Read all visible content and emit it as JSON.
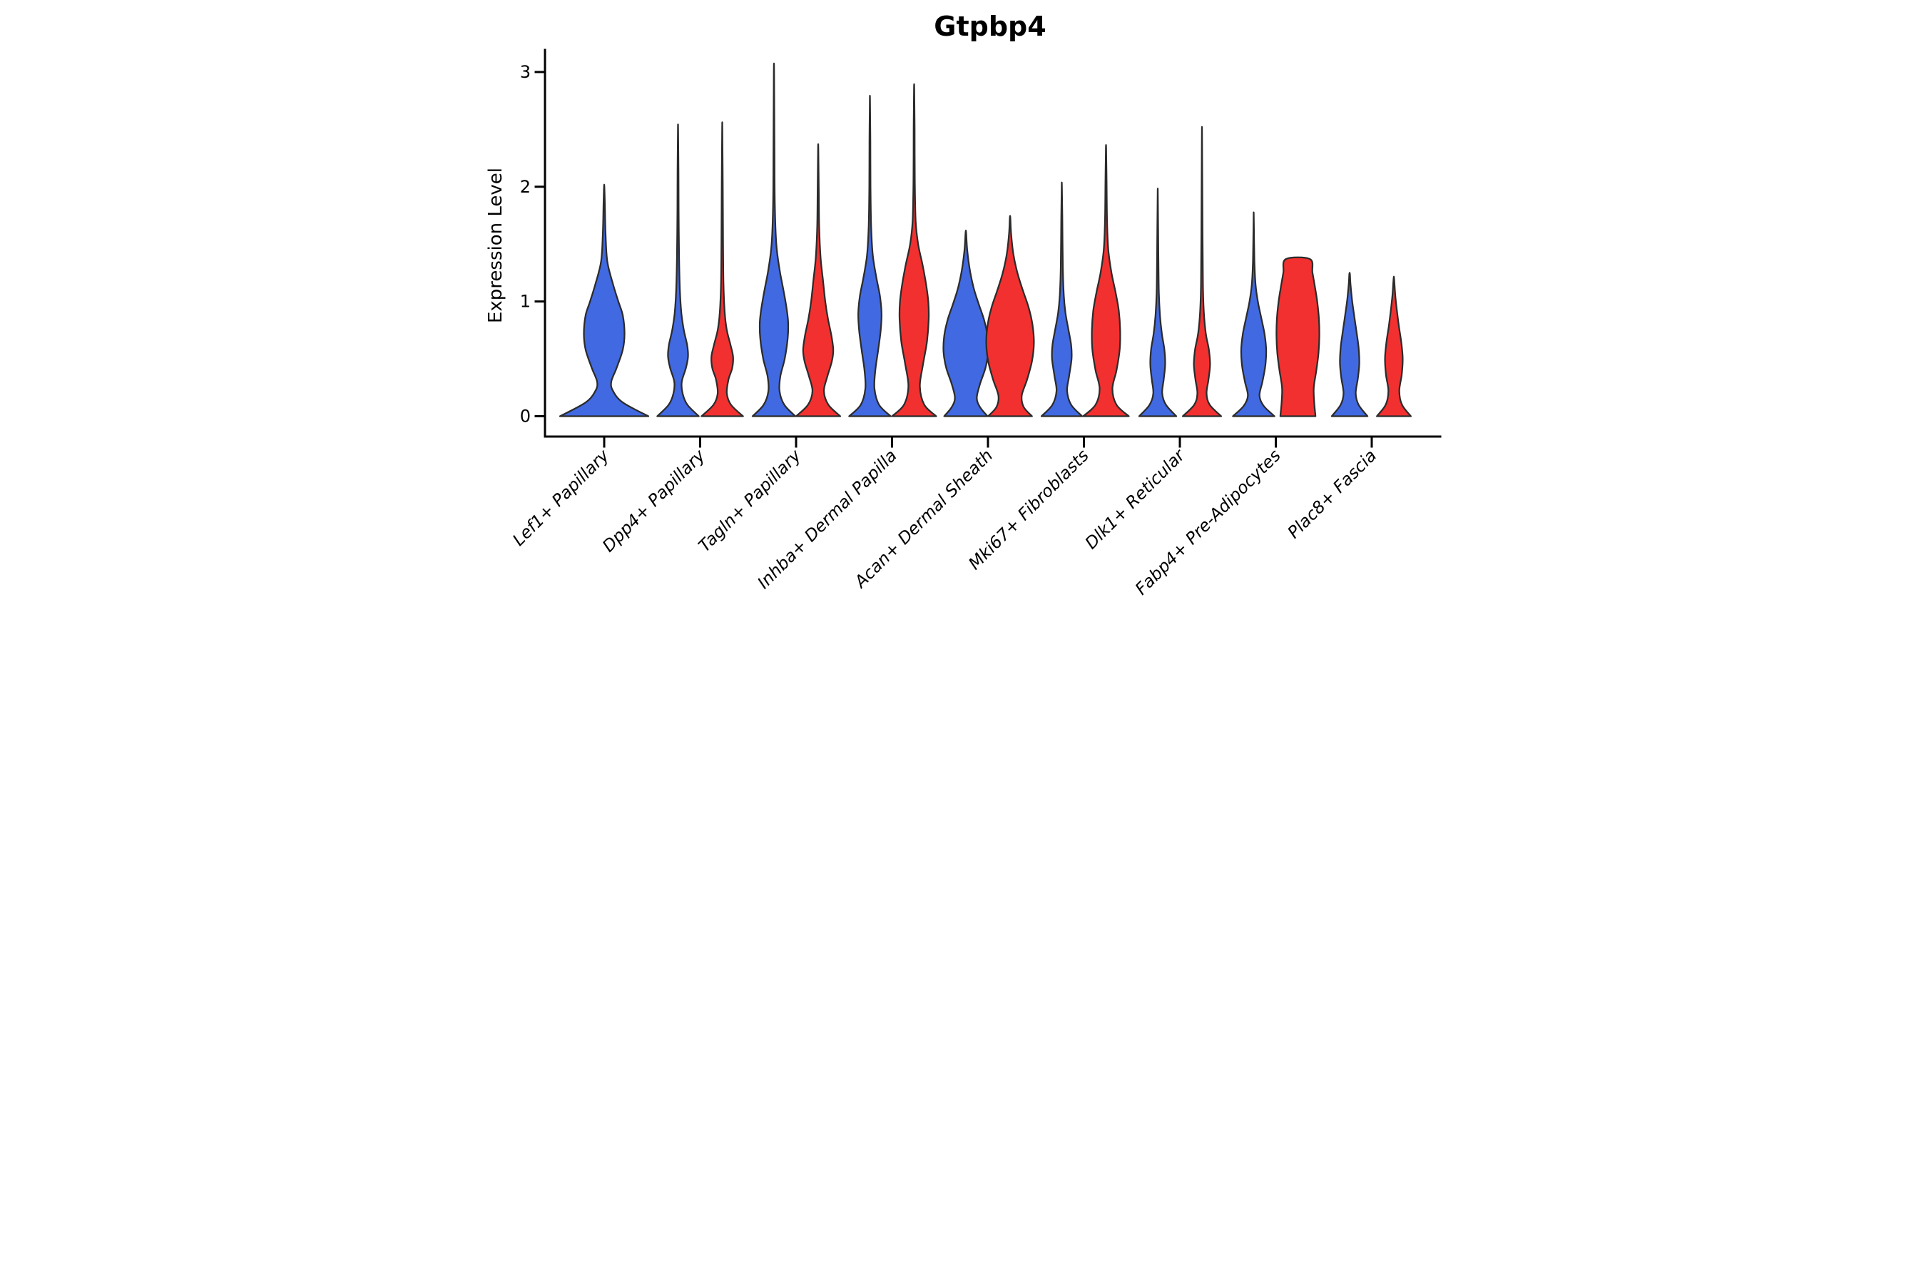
{
  "chart_data": {
    "type": "violin",
    "title": "Gtpbp4",
    "ylabel": "Expression Level",
    "xlabel": "",
    "ylim": [
      0,
      3.05
    ],
    "y_ticks": [
      0,
      1,
      2,
      3
    ],
    "grid": "off",
    "legend": "none",
    "colors": {
      "blue": "#4169E1",
      "red": "#F23030",
      "outline": "#2B2B2B"
    },
    "categories": [
      "Lef1+ Papillary",
      "Dpp4+ Papillary",
      "Tagln+ Papillary",
      "Inhba+ Dermal Papilla",
      "Acan+ Dermal Sheath",
      "Mki67+ Fibroblasts",
      "Dlk1+ Reticular",
      "Fabp4+ Pre-Adipocytes",
      "Plac8+ Fascia"
    ],
    "violins": [
      {
        "category": 0,
        "group": "blue",
        "side": "center",
        "max_expression": 2.0,
        "width_scale": 2.0,
        "flat_top": false,
        "profile": [
          [
            0,
            1.0
          ],
          [
            0.12,
            0.42
          ],
          [
            0.22,
            0.2
          ],
          [
            0.3,
            0.16
          ],
          [
            0.42,
            0.28
          ],
          [
            0.58,
            0.42
          ],
          [
            0.72,
            0.46
          ],
          [
            0.88,
            0.42
          ],
          [
            1.0,
            0.32
          ],
          [
            1.15,
            0.2
          ],
          [
            1.35,
            0.07
          ],
          [
            1.6,
            0.03
          ],
          [
            1.85,
            0.015
          ],
          [
            2.0,
            0.004
          ]
        ]
      },
      {
        "category": 1,
        "group": "blue",
        "side": "left",
        "max_expression": 2.5,
        "width_scale": 0.94,
        "flat_top": false,
        "profile": [
          [
            0,
            1.0
          ],
          [
            0.1,
            0.45
          ],
          [
            0.2,
            0.22
          ],
          [
            0.3,
            0.18
          ],
          [
            0.42,
            0.38
          ],
          [
            0.52,
            0.48
          ],
          [
            0.62,
            0.44
          ],
          [
            0.75,
            0.28
          ],
          [
            0.9,
            0.16
          ],
          [
            1.1,
            0.09
          ],
          [
            1.4,
            0.05
          ],
          [
            1.8,
            0.03
          ],
          [
            2.15,
            0.022
          ],
          [
            2.5,
            0.006
          ]
        ]
      },
      {
        "category": 1,
        "group": "red",
        "side": "right",
        "max_expression": 2.5,
        "width_scale": 0.94,
        "flat_top": false,
        "profile": [
          [
            0,
            1.0
          ],
          [
            0.1,
            0.42
          ],
          [
            0.2,
            0.22
          ],
          [
            0.32,
            0.3
          ],
          [
            0.42,
            0.48
          ],
          [
            0.52,
            0.52
          ],
          [
            0.62,
            0.4
          ],
          [
            0.75,
            0.22
          ],
          [
            0.9,
            0.12
          ],
          [
            1.15,
            0.06
          ],
          [
            1.5,
            0.04
          ],
          [
            2.0,
            0.025
          ],
          [
            2.5,
            0.006
          ]
        ]
      },
      {
        "category": 2,
        "group": "blue",
        "side": "left",
        "max_expression": 3.0,
        "width_scale": 0.97,
        "flat_top": false,
        "profile": [
          [
            0,
            1.0
          ],
          [
            0.1,
            0.48
          ],
          [
            0.22,
            0.26
          ],
          [
            0.35,
            0.3
          ],
          [
            0.5,
            0.5
          ],
          [
            0.68,
            0.64
          ],
          [
            0.82,
            0.66
          ],
          [
            0.95,
            0.58
          ],
          [
            1.1,
            0.44
          ],
          [
            1.28,
            0.26
          ],
          [
            1.5,
            0.11
          ],
          [
            1.85,
            0.04
          ],
          [
            2.4,
            0.022
          ],
          [
            3.0,
            0.006
          ]
        ]
      },
      {
        "category": 2,
        "group": "red",
        "side": "right",
        "max_expression": 2.33,
        "width_scale": 1.0,
        "flat_top": false,
        "profile": [
          [
            0,
            1.0
          ],
          [
            0.1,
            0.46
          ],
          [
            0.22,
            0.26
          ],
          [
            0.35,
            0.42
          ],
          [
            0.48,
            0.62
          ],
          [
            0.58,
            0.68
          ],
          [
            0.7,
            0.6
          ],
          [
            0.85,
            0.44
          ],
          [
            1.0,
            0.32
          ],
          [
            1.18,
            0.22
          ],
          [
            1.38,
            0.11
          ],
          [
            1.65,
            0.045
          ],
          [
            2.0,
            0.025
          ],
          [
            2.33,
            0.006
          ]
        ]
      },
      {
        "category": 3,
        "group": "blue",
        "side": "left",
        "max_expression": 2.75,
        "width_scale": 0.94,
        "flat_top": false,
        "profile": [
          [
            0,
            1.0
          ],
          [
            0.1,
            0.44
          ],
          [
            0.24,
            0.22
          ],
          [
            0.4,
            0.26
          ],
          [
            0.58,
            0.4
          ],
          [
            0.75,
            0.52
          ],
          [
            0.9,
            0.56
          ],
          [
            1.05,
            0.48
          ],
          [
            1.2,
            0.32
          ],
          [
            1.4,
            0.14
          ],
          [
            1.65,
            0.06
          ],
          [
            2.0,
            0.03
          ],
          [
            2.4,
            0.022
          ],
          [
            2.75,
            0.006
          ]
        ]
      },
      {
        "category": 3,
        "group": "red",
        "side": "right",
        "max_expression": 2.85,
        "width_scale": 1.0,
        "flat_top": false,
        "profile": [
          [
            0,
            1.0
          ],
          [
            0.1,
            0.46
          ],
          [
            0.26,
            0.26
          ],
          [
            0.45,
            0.4
          ],
          [
            0.65,
            0.58
          ],
          [
            0.85,
            0.66
          ],
          [
            1.0,
            0.64
          ],
          [
            1.15,
            0.54
          ],
          [
            1.32,
            0.38
          ],
          [
            1.5,
            0.18
          ],
          [
            1.7,
            0.07
          ],
          [
            2.05,
            0.03
          ],
          [
            2.5,
            0.022
          ],
          [
            2.85,
            0.006
          ]
        ]
      },
      {
        "category": 4,
        "group": "blue",
        "side": "left",
        "max_expression": 1.6,
        "width_scale": 1.03,
        "flat_top": false,
        "profile": [
          [
            0,
            0.95
          ],
          [
            0.08,
            0.62
          ],
          [
            0.16,
            0.48
          ],
          [
            0.28,
            0.62
          ],
          [
            0.42,
            0.86
          ],
          [
            0.56,
            0.98
          ],
          [
            0.7,
            0.95
          ],
          [
            0.84,
            0.8
          ],
          [
            0.98,
            0.56
          ],
          [
            1.12,
            0.34
          ],
          [
            1.28,
            0.17
          ],
          [
            1.45,
            0.06
          ],
          [
            1.6,
            0.012
          ]
        ]
      },
      {
        "category": 4,
        "group": "red",
        "side": "right",
        "max_expression": 1.73,
        "width_scale": 1.1,
        "flat_top": false,
        "profile": [
          [
            0,
            0.9
          ],
          [
            0.08,
            0.56
          ],
          [
            0.18,
            0.48
          ],
          [
            0.32,
            0.7
          ],
          [
            0.48,
            0.9
          ],
          [
            0.64,
            0.98
          ],
          [
            0.8,
            0.92
          ],
          [
            0.95,
            0.76
          ],
          [
            1.1,
            0.52
          ],
          [
            1.25,
            0.3
          ],
          [
            1.42,
            0.13
          ],
          [
            1.6,
            0.04
          ],
          [
            1.73,
            0.01
          ]
        ]
      },
      {
        "category": 5,
        "group": "blue",
        "side": "left",
        "max_expression": 2.0,
        "width_scale": 0.92,
        "flat_top": false,
        "profile": [
          [
            0,
            1.0
          ],
          [
            0.1,
            0.46
          ],
          [
            0.22,
            0.26
          ],
          [
            0.35,
            0.36
          ],
          [
            0.5,
            0.48
          ],
          [
            0.62,
            0.46
          ],
          [
            0.76,
            0.32
          ],
          [
            0.9,
            0.18
          ],
          [
            1.05,
            0.1
          ],
          [
            1.3,
            0.05
          ],
          [
            1.7,
            0.028
          ],
          [
            2.0,
            0.006
          ]
        ]
      },
      {
        "category": 5,
        "group": "red",
        "side": "right",
        "max_expression": 2.33,
        "width_scale": 1.03,
        "flat_top": false,
        "profile": [
          [
            0,
            1.0
          ],
          [
            0.1,
            0.46
          ],
          [
            0.24,
            0.28
          ],
          [
            0.4,
            0.46
          ],
          [
            0.58,
            0.6
          ],
          [
            0.75,
            0.62
          ],
          [
            0.92,
            0.56
          ],
          [
            1.08,
            0.42
          ],
          [
            1.25,
            0.24
          ],
          [
            1.45,
            0.1
          ],
          [
            1.7,
            0.045
          ],
          [
            2.05,
            0.025
          ],
          [
            2.33,
            0.006
          ]
        ]
      },
      {
        "category": 6,
        "group": "blue",
        "side": "left",
        "max_expression": 1.92,
        "width_scale": 0.84,
        "flat_top": false,
        "profile": [
          [
            0,
            1.0
          ],
          [
            0.1,
            0.44
          ],
          [
            0.2,
            0.24
          ],
          [
            0.32,
            0.32
          ],
          [
            0.45,
            0.4
          ],
          [
            0.58,
            0.36
          ],
          [
            0.72,
            0.22
          ],
          [
            0.88,
            0.12
          ],
          [
            1.08,
            0.06
          ],
          [
            1.4,
            0.035
          ],
          [
            1.92,
            0.006
          ]
        ]
      },
      {
        "category": 6,
        "group": "red",
        "side": "right",
        "max_expression": 2.42,
        "width_scale": 0.87,
        "flat_top": false,
        "profile": [
          [
            0,
            1.0
          ],
          [
            0.1,
            0.4
          ],
          [
            0.2,
            0.24
          ],
          [
            0.32,
            0.34
          ],
          [
            0.45,
            0.42
          ],
          [
            0.58,
            0.36
          ],
          [
            0.72,
            0.2
          ],
          [
            0.9,
            0.1
          ],
          [
            1.15,
            0.05
          ],
          [
            1.6,
            0.03
          ],
          [
            2.42,
            0.006
          ]
        ]
      },
      {
        "category": 7,
        "group": "blue",
        "side": "left",
        "max_expression": 1.73,
        "width_scale": 0.94,
        "flat_top": false,
        "profile": [
          [
            0,
            1.0
          ],
          [
            0.09,
            0.48
          ],
          [
            0.18,
            0.28
          ],
          [
            0.3,
            0.42
          ],
          [
            0.44,
            0.56
          ],
          [
            0.58,
            0.6
          ],
          [
            0.72,
            0.52
          ],
          [
            0.86,
            0.36
          ],
          [
            1.0,
            0.2
          ],
          [
            1.15,
            0.09
          ],
          [
            1.35,
            0.035
          ],
          [
            1.73,
            0.006
          ]
        ]
      },
      {
        "category": 7,
        "group": "red",
        "side": "right",
        "max_expression": 1.37,
        "width_scale": 0.97,
        "flat_top": true,
        "profile": [
          [
            0,
            0.82
          ],
          [
            0.12,
            0.76
          ],
          [
            0.25,
            0.74
          ],
          [
            0.4,
            0.86
          ],
          [
            0.55,
            0.96
          ],
          [
            0.7,
            1.0
          ],
          [
            0.85,
            0.98
          ],
          [
            1.0,
            0.9
          ],
          [
            1.12,
            0.8
          ],
          [
            1.25,
            0.68
          ],
          [
            1.37,
            0.56
          ]
        ]
      },
      {
        "category": 8,
        "group": "blue",
        "side": "left",
        "max_expression": 1.24,
        "width_scale": 0.81,
        "flat_top": false,
        "profile": [
          [
            0,
            1.0
          ],
          [
            0.1,
            0.5
          ],
          [
            0.2,
            0.34
          ],
          [
            0.33,
            0.46
          ],
          [
            0.46,
            0.54
          ],
          [
            0.6,
            0.5
          ],
          [
            0.74,
            0.38
          ],
          [
            0.88,
            0.25
          ],
          [
            1.02,
            0.13
          ],
          [
            1.15,
            0.05
          ],
          [
            1.24,
            0.015
          ]
        ]
      },
      {
        "category": 8,
        "group": "red",
        "side": "right",
        "max_expression": 1.2,
        "width_scale": 0.77,
        "flat_top": false,
        "profile": [
          [
            0,
            1.0
          ],
          [
            0.1,
            0.48
          ],
          [
            0.22,
            0.32
          ],
          [
            0.36,
            0.46
          ],
          [
            0.5,
            0.52
          ],
          [
            0.64,
            0.44
          ],
          [
            0.78,
            0.3
          ],
          [
            0.92,
            0.18
          ],
          [
            1.06,
            0.08
          ],
          [
            1.2,
            0.015
          ]
        ]
      }
    ]
  }
}
